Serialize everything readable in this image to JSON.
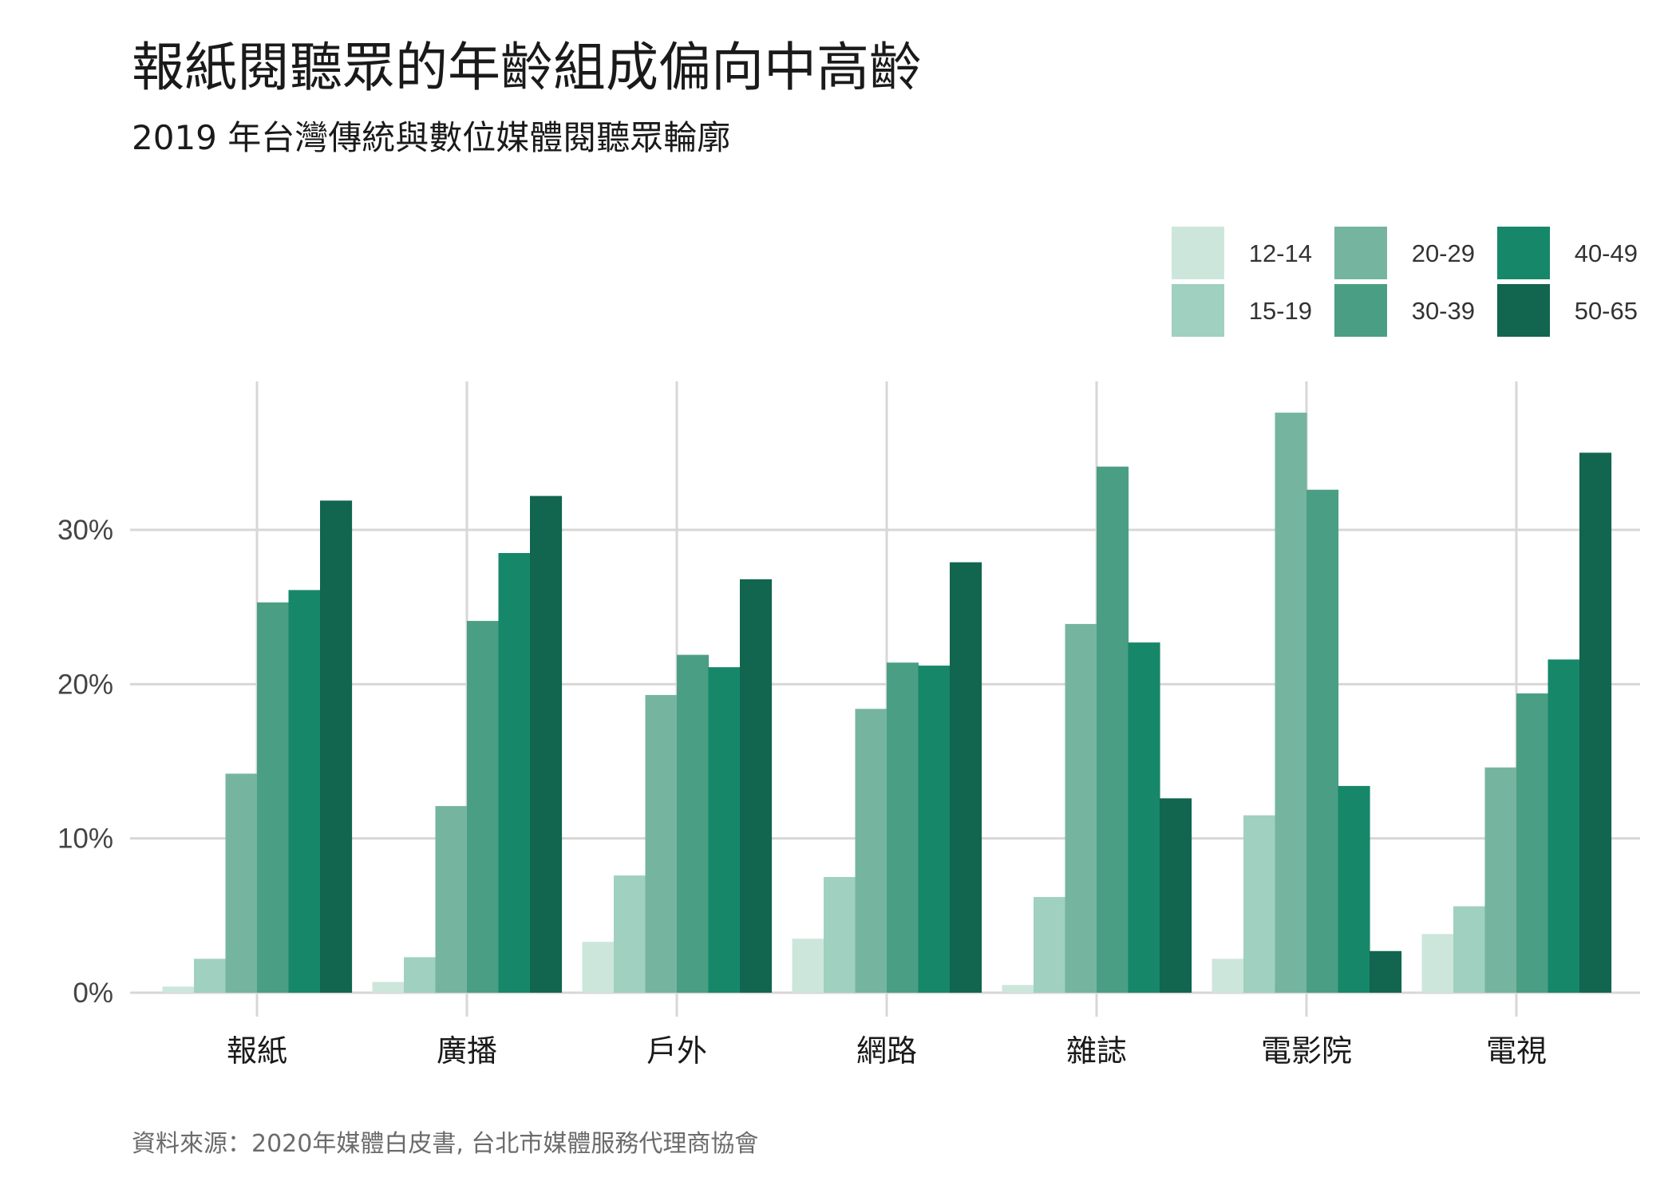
{
  "title": "報紙閱聽眾的年齡組成偏向中高齡",
  "subtitle": "2019 年台灣傳統與數位媒體閱聽眾輪廓",
  "caption": "資料來源：2020年媒體白皮書, 台北市媒體服務代理商協會",
  "colors": {
    "grid": "#d9d6d6",
    "series": [
      "#cde6dc",
      "#a0d0bf",
      "#75b5a0",
      "#4a9e84",
      "#17876a",
      "#12654f"
    ]
  },
  "chart_data": {
    "type": "bar",
    "title": "報紙閱聽眾的年齡組成偏向中高齡",
    "xlabel": "",
    "ylabel": "",
    "ylim": [
      0,
      40
    ],
    "yticks": [
      0,
      10,
      20,
      30
    ],
    "ytick_labels": [
      "0%",
      "10%",
      "20%",
      "30%"
    ],
    "grid": true,
    "legend_position": "top-right",
    "categories": [
      "報紙",
      "廣播",
      "戶外",
      "網路",
      "雜誌",
      "電影院",
      "電視"
    ],
    "series": [
      {
        "name": "12-14",
        "values": [
          0.4,
          0.7,
          3.3,
          3.5,
          0.5,
          2.2,
          3.8
        ]
      },
      {
        "name": "15-19",
        "values": [
          2.2,
          2.3,
          7.6,
          7.5,
          6.2,
          11.5,
          5.6
        ]
      },
      {
        "name": "20-29",
        "values": [
          14.2,
          12.1,
          19.3,
          18.4,
          23.9,
          37.6,
          14.6
        ]
      },
      {
        "name": "30-39",
        "values": [
          25.3,
          24.1,
          21.9,
          21.4,
          34.1,
          32.6,
          19.4
        ]
      },
      {
        "name": "40-49",
        "values": [
          26.1,
          28.5,
          21.1,
          21.2,
          22.7,
          13.4,
          21.6
        ]
      },
      {
        "name": "50-65",
        "values": [
          31.9,
          32.2,
          26.8,
          27.9,
          12.6,
          2.7,
          35.0
        ]
      }
    ]
  }
}
